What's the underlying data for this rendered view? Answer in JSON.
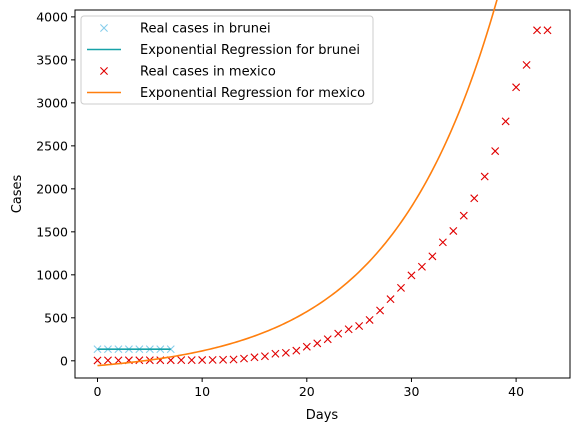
{
  "chart_data": {
    "type": "line",
    "title": "",
    "xlabel": "Days",
    "ylabel": "Cases",
    "xlim": [
      -2.15,
      45.15
    ],
    "ylim": [
      -200,
      4080
    ],
    "xticks": [
      0,
      10,
      20,
      30,
      40
    ],
    "yticks": [
      0,
      500,
      1000,
      1500,
      2000,
      2500,
      3000,
      3500,
      4000
    ],
    "grid": false,
    "legend": "top-left",
    "series": [
      {
        "name": "Real cases in brunei",
        "kind": "scatter",
        "marker": "x",
        "color": "#87ceeb",
        "x": [
          0,
          1,
          2,
          3,
          4,
          5,
          6,
          7
        ],
        "y": [
          135,
          135,
          135,
          135,
          135,
          135,
          135,
          135
        ]
      },
      {
        "name": "Exponential Regression for brunei",
        "kind": "line",
        "color": "#17a2a8",
        "x": [
          0,
          1,
          2,
          3,
          4,
          5,
          6,
          7
        ],
        "y": [
          135,
          135,
          135,
          135,
          135,
          135,
          135,
          135
        ]
      },
      {
        "name": "Real cases in mexico",
        "kind": "scatter",
        "marker": "x",
        "color": "#e00000",
        "x": [
          0,
          1,
          2,
          3,
          4,
          5,
          6,
          7,
          8,
          9,
          10,
          11,
          12,
          13,
          14,
          15,
          16,
          17,
          18,
          19,
          20,
          21,
          22,
          23,
          24,
          25,
          26,
          27,
          28,
          29,
          30,
          31,
          32,
          33,
          34,
          35,
          36,
          37,
          38,
          39,
          40,
          41,
          42,
          43
        ],
        "y": [
          4,
          5,
          5,
          6,
          6,
          7,
          7,
          7,
          8,
          8,
          9,
          10,
          12,
          15,
          26,
          41,
          53,
          82,
          93,
          118,
          164,
          203,
          251,
          316,
          367,
          405,
          475,
          585,
          717,
          848,
          993,
          1094,
          1215,
          1378,
          1510,
          1688,
          1890,
          2143,
          2439,
          2785,
          3181,
          3441,
          3844,
          3844
        ]
      },
      {
        "name": "Exponential Regression for mexico",
        "kind": "line",
        "color": "#ff7f0e",
        "fit": {
          "a": 102.2,
          "b": 0.0983,
          "c": -158
        },
        "x_range": [
          0,
          43
        ]
      }
    ]
  }
}
